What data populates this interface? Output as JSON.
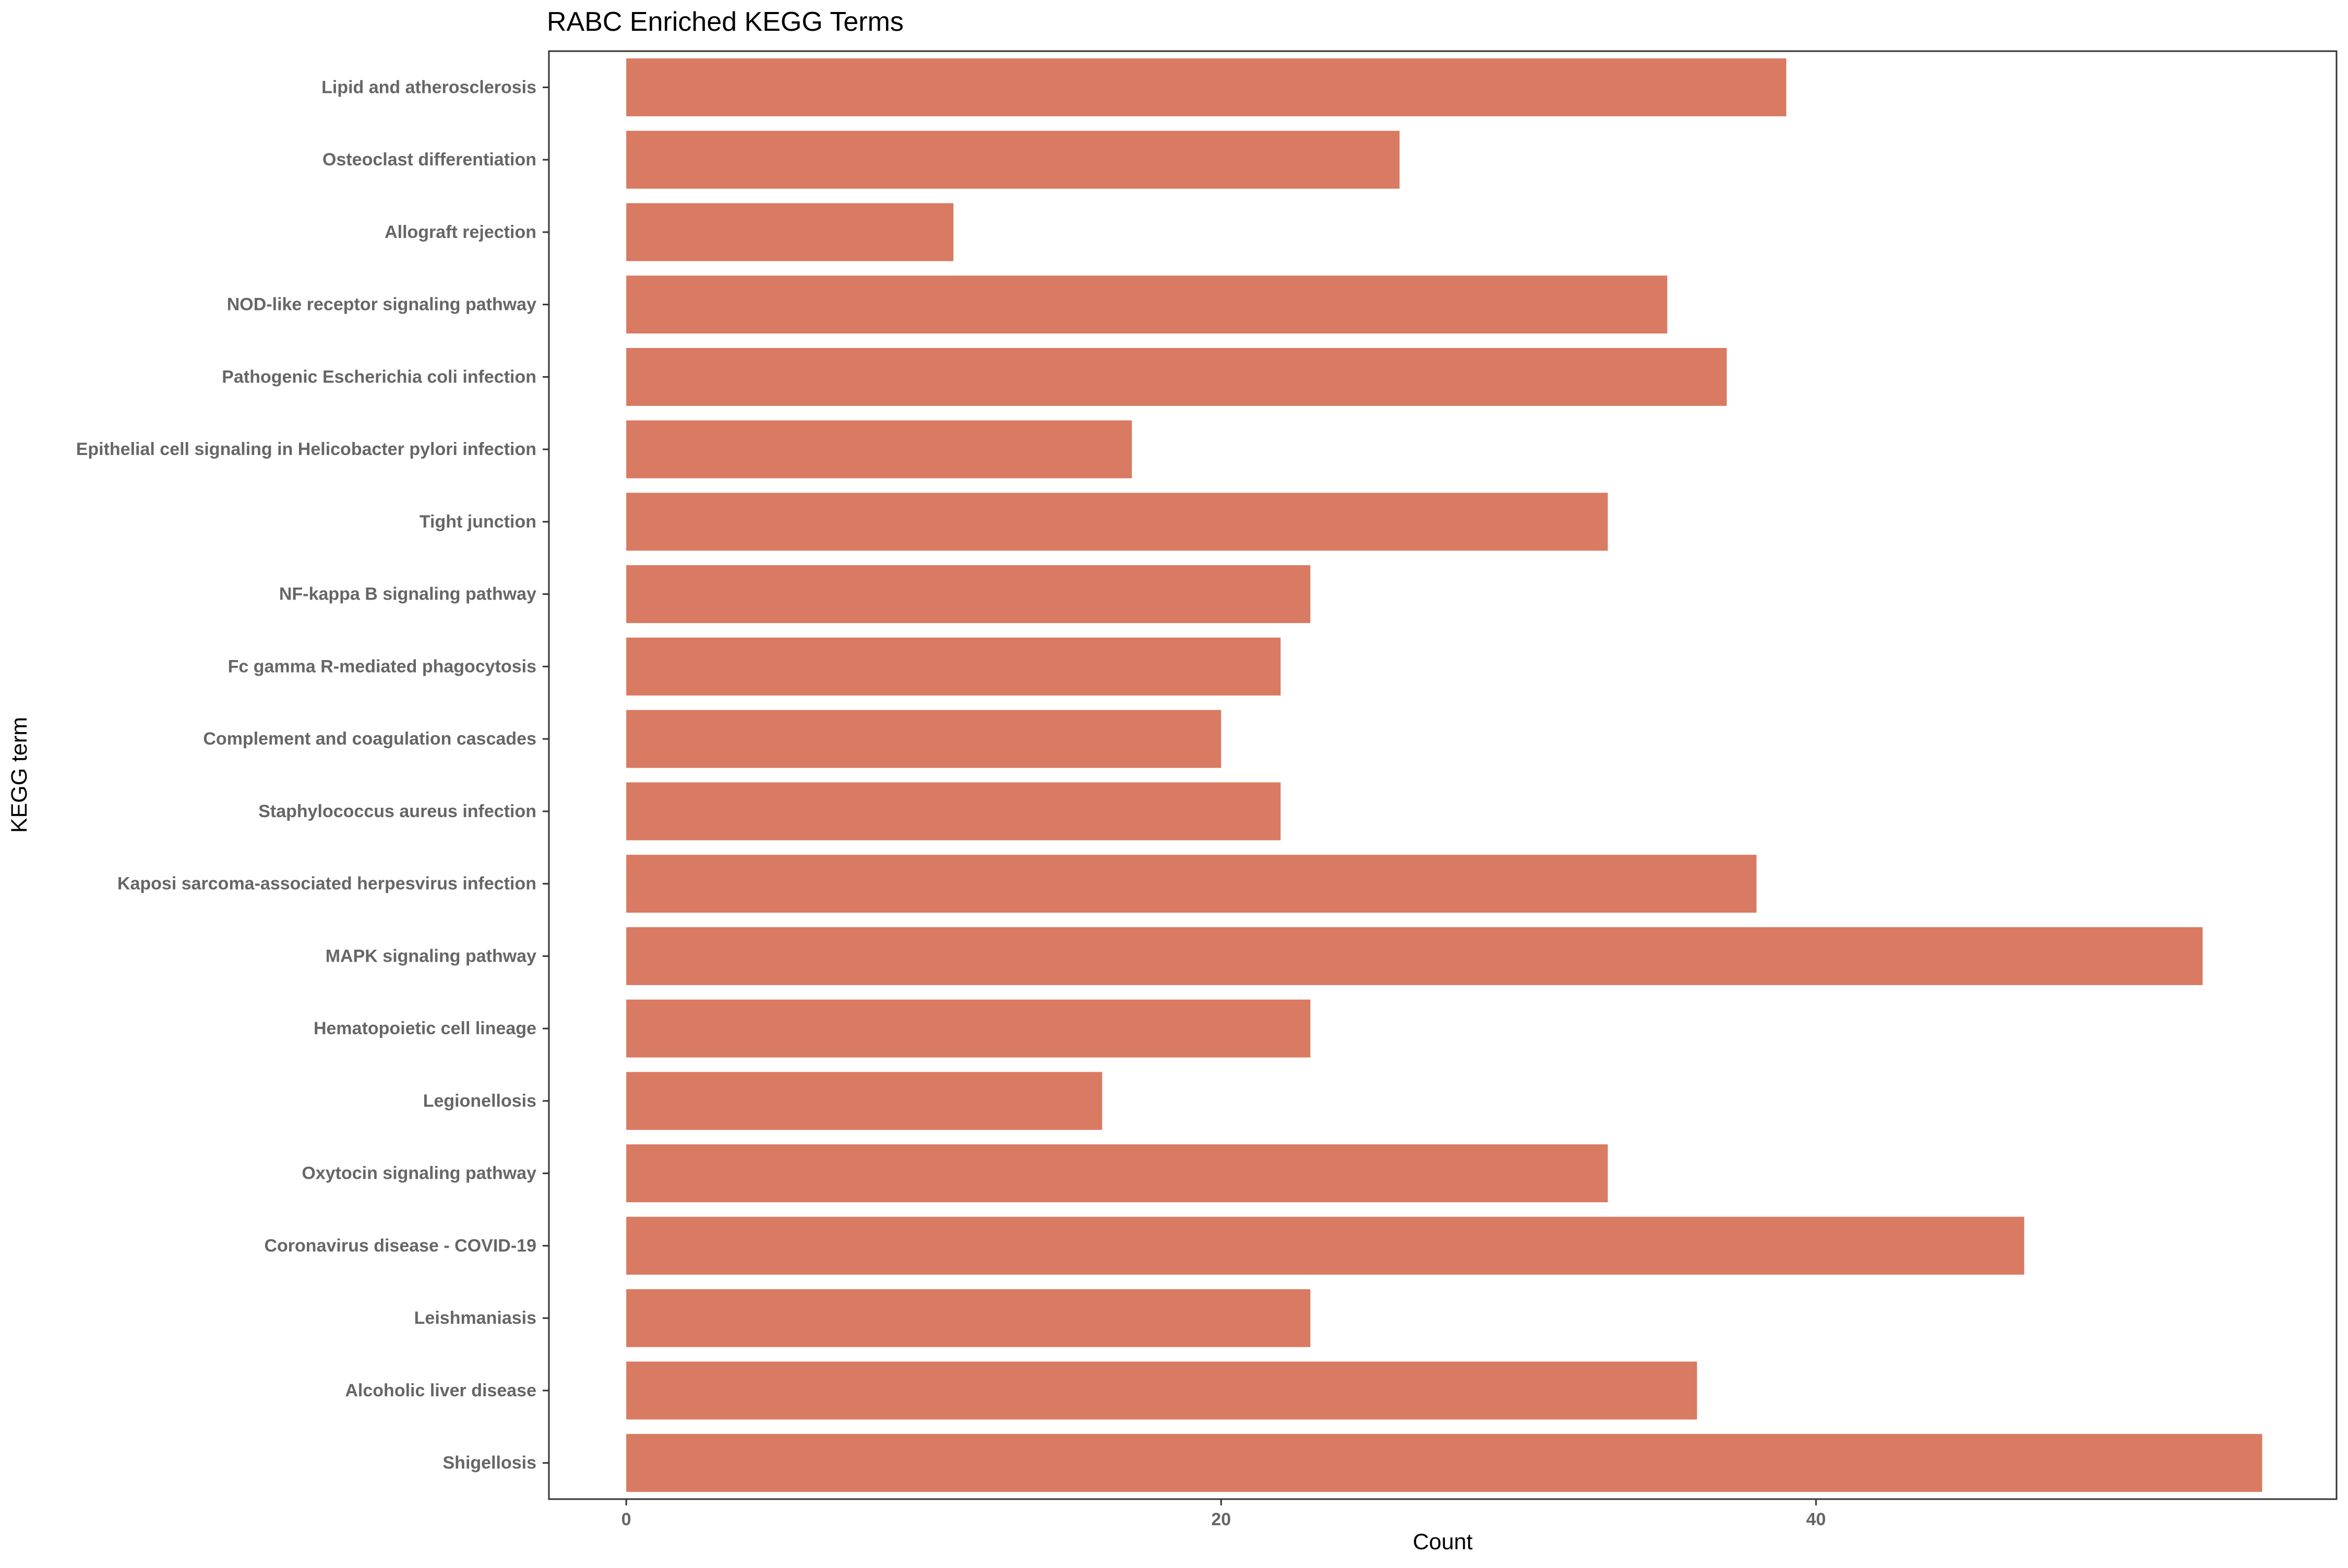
{
  "chart_data": {
    "type": "bar",
    "orientation": "horizontal",
    "title": "RABC Enriched KEGG Terms",
    "xlabel": "Count",
    "ylabel": "KEGG term",
    "xlim": [
      -2.6,
      57.5
    ],
    "x_ticks": [
      {
        "value": 0,
        "label": "0"
      },
      {
        "value": 20,
        "label": "20"
      },
      {
        "value": 40,
        "label": "40"
      }
    ],
    "grid": false,
    "bar_color": "#D97A62",
    "categories": [
      "Lipid and atherosclerosis",
      "Osteoclast differentiation",
      "Allograft rejection",
      "NOD-like receptor signaling pathway",
      "Pathogenic Escherichia coli infection",
      "Epithelial cell signaling in Helicobacter pylori infection",
      "Tight junction",
      "NF-kappa B signaling pathway",
      "Fc gamma R-mediated phagocytosis",
      "Complement and coagulation cascades",
      "Staphylococcus aureus infection",
      "Kaposi sarcoma-associated herpesvirus infection",
      "MAPK signaling pathway",
      "Hematopoietic cell lineage",
      "Legionellosis",
      "Oxytocin signaling pathway",
      "Coronavirus disease - COVID-19",
      "Leishmaniasis",
      "Alcoholic liver disease",
      "Shigellosis"
    ],
    "values": [
      39,
      26,
      11,
      35,
      37,
      17,
      33,
      23,
      22,
      20,
      22,
      38,
      53,
      23,
      16,
      33,
      47,
      23,
      36,
      55
    ]
  }
}
